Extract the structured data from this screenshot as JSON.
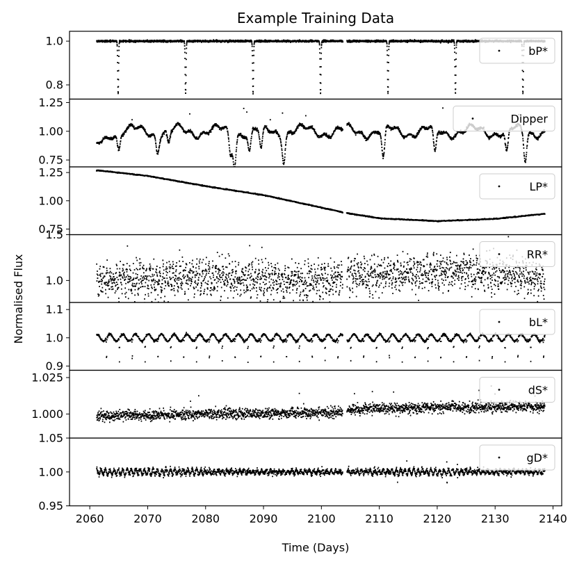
{
  "chart_data": {
    "type": "scatter",
    "title": "Example Training Data",
    "xlabel": "Time (Days)",
    "ylabel": "Normalised Flux",
    "xlim": [
      2056.5,
      2141.5
    ],
    "xticks": [
      2060,
      2070,
      2080,
      2090,
      2100,
      2110,
      2120,
      2130,
      2140
    ],
    "x_data_range": [
      2061.2,
      2138.6
    ],
    "data_gap": [
      2103.7,
      2104.4
    ],
    "legend_position": "upper right",
    "marker_color": "#000000",
    "legend_box_color": "#ffffff",
    "panels": [
      {
        "name": "bP*",
        "kind": "eclipsing",
        "ylim": [
          0.735,
          1.045
        ],
        "yticks": [
          {
            "v": 1.0,
            "label": "1.0"
          },
          {
            "v": 0.8,
            "label": "0.8"
          }
        ],
        "baseline": 1.0,
        "noise": 0.002,
        "period": 11.65,
        "first_event": 2064.9,
        "depth": 0.24
      },
      {
        "name": "Dipper",
        "kind": "dipper",
        "ylim": [
          0.69,
          1.28
        ],
        "yticks": [
          {
            "v": 1.25,
            "label": "1.25"
          },
          {
            "v": 1.0,
            "label": "1.00"
          },
          {
            "v": 0.75,
            "label": "0.75"
          }
        ],
        "dips": [
          {
            "t": 2065.0,
            "d": 0.15
          },
          {
            "t": 2071.7,
            "d": 0.15
          },
          {
            "t": 2073.6,
            "d": 0.12
          },
          {
            "t": 2084.3,
            "d": 0.2
          },
          {
            "t": 2085.0,
            "d": 0.27
          },
          {
            "t": 2087.6,
            "d": 0.17
          },
          {
            "t": 2089.6,
            "d": 0.19
          },
          {
            "t": 2093.5,
            "d": 0.23
          },
          {
            "t": 2110.7,
            "d": 0.27
          },
          {
            "t": 2119.6,
            "d": 0.22
          },
          {
            "t": 2132.0,
            "d": 0.2
          },
          {
            "t": 2135.2,
            "d": 0.25
          }
        ]
      },
      {
        "name": "LP*",
        "kind": "trend",
        "ylim": [
          0.7,
          1.3
        ],
        "yticks": [
          {
            "v": 1.25,
            "label": "1.25"
          },
          {
            "v": 1.0,
            "label": "1.00"
          },
          {
            "v": 0.75,
            "label": "0.75"
          }
        ],
        "trend_points": [
          [
            2061.2,
            1.27
          ],
          [
            2070,
            1.22
          ],
          [
            2080,
            1.13
          ],
          [
            2090,
            1.05
          ],
          [
            2100,
            0.94
          ],
          [
            2104,
            0.895
          ],
          [
            2110,
            0.845
          ],
          [
            2120,
            0.82
          ],
          [
            2130,
            0.84
          ],
          [
            2138.6,
            0.885
          ]
        ]
      },
      {
        "name": "RR*",
        "kind": "noisy",
        "ylim": [
          0.76,
          1.5
        ],
        "yticks": [
          {
            "v": 1.5,
            "label": "1.5"
          },
          {
            "v": 1.0,
            "label": "1.0"
          }
        ],
        "trend_points": [
          [
            2061.2,
            1.0
          ],
          [
            2080,
            1.03
          ],
          [
            2100,
            1.0
          ],
          [
            2104.4,
            1.05
          ],
          [
            2125,
            1.1
          ],
          [
            2138.6,
            1.02
          ]
        ],
        "amplitude": 0.14,
        "outlier_rate": 0.012
      },
      {
        "name": "bL*",
        "kind": "eclipsing_sine",
        "ylim": [
          0.885,
          1.125
        ],
        "yticks": [
          {
            "v": 1.1,
            "label": "1.1"
          },
          {
            "v": 1.0,
            "label": "1.0"
          },
          {
            "v": 0.9,
            "label": "0.9"
          }
        ],
        "baseline": 1.0,
        "sine_period": 2.22,
        "sine_amp": 0.012,
        "period": 2.22,
        "first_event": 2062.9,
        "depth": 0.085
      },
      {
        "name": "dS*",
        "kind": "noisy",
        "ylim": [
          0.9835,
          1.03
        ],
        "yticks": [
          {
            "v": 1.025,
            "label": "1.025"
          },
          {
            "v": 1.0,
            "label": "1.000"
          }
        ],
        "trend_points": [
          [
            2061.2,
            0.9985
          ],
          [
            2080,
            1.0
          ],
          [
            2103.7,
            1.001
          ],
          [
            2104.4,
            1.003
          ],
          [
            2120,
            1.0045
          ],
          [
            2138.6,
            1.005
          ]
        ],
        "amplitude": 0.0032,
        "outlier_rate": 0.006
      },
      {
        "name": "gD*",
        "kind": "gd",
        "ylim": [
          0.95,
          1.05
        ],
        "yticks": [
          {
            "v": 1.05,
            "label": "1.05"
          },
          {
            "v": 1.0,
            "label": "1.00"
          },
          {
            "v": 0.95,
            "label": "0.95"
          }
        ],
        "baseline": 1.0,
        "sine_period": 0.75,
        "sine_amp": 0.004
      }
    ]
  }
}
